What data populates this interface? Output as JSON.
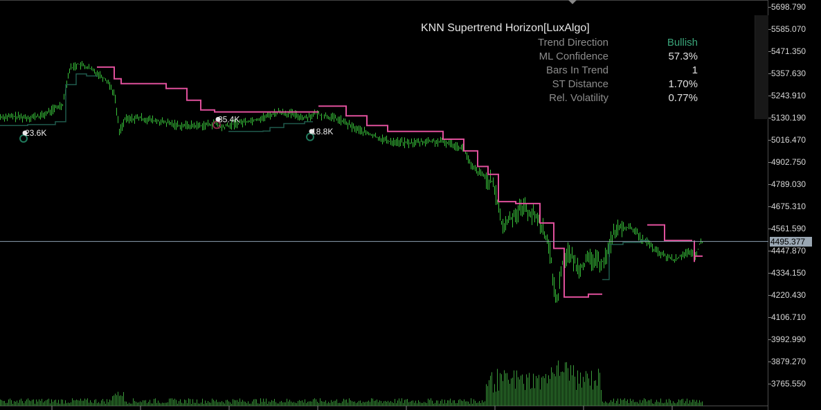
{
  "chart_data": {
    "type": "candlestick-with-indicator",
    "ylim": [
      3700,
      5720
    ],
    "price_axis_ticks": [
      "5698.790",
      "5585.070",
      "5471.350",
      "5357.630",
      "5243.910",
      "5130.190",
      "5016.470",
      "4902.750",
      "4789.030",
      "4675.310",
      "4561.590",
      "4447.870",
      "4334.150",
      "4220.430",
      "4106.710",
      "3992.990",
      "3879.270",
      "3765.550"
    ],
    "tick_values": [
      5698.79,
      5585.07,
      5471.35,
      5357.63,
      5243.91,
      5130.19,
      5016.47,
      4902.75,
      4789.03,
      4675.31,
      4561.59,
      4447.87,
      4334.15,
      4220.43,
      4106.71,
      3992.99,
      3879.27,
      3765.55
    ],
    "current_price": "4495.377",
    "current_price_value": 4495.377,
    "bull_color": "#38c23a",
    "bear_st_color": "#e0509c",
    "bull_st_color": "#1f5a4c",
    "annotations": [
      {
        "label": "23.6K",
        "price": 5052,
        "index": 34,
        "kind": "bull"
      },
      {
        "label": "35.4K",
        "price": 5122,
        "index": 313,
        "kind": "bear"
      },
      {
        "label": "18.8K",
        "price": 5060,
        "index": 448,
        "kind": "bull"
      }
    ]
  },
  "panel": {
    "title": "KNN Supertrend Horizon[LuxAlgo]",
    "rows": [
      {
        "label": "Trend Direction",
        "value": "Bullish",
        "color": "#3aa57a"
      },
      {
        "label": "ML Confidence",
        "value": "57.3%",
        "color": "#e0e0e0"
      },
      {
        "label": "Bars In Trend",
        "value": "1",
        "color": "#e0e0e0"
      },
      {
        "label": "ST Distance",
        "value": "1.70%",
        "color": "#e0e0e0"
      },
      {
        "label": "Rel. Volatility",
        "value": "0.77%",
        "color": "#e0e0e0"
      }
    ]
  }
}
